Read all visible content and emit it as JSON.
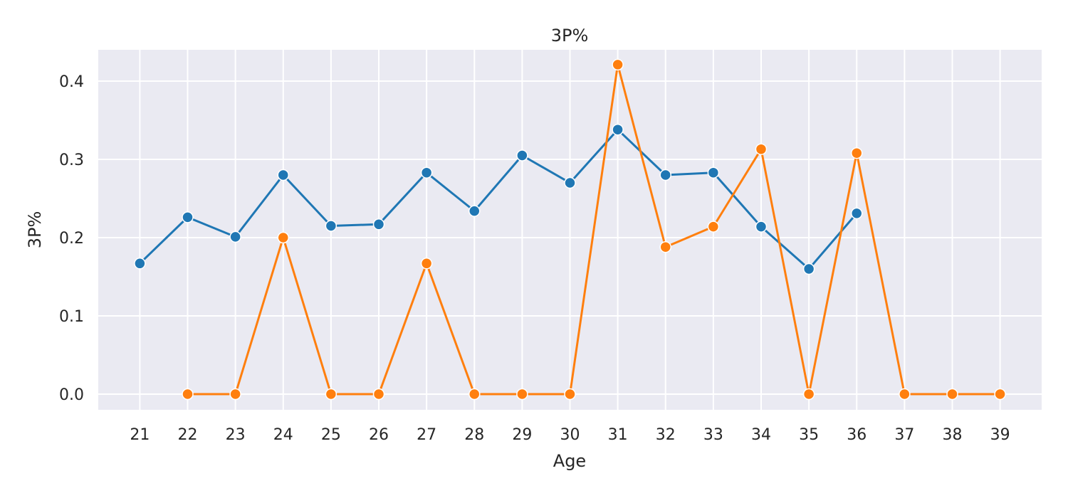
{
  "chart_data": {
    "type": "line",
    "title": "3P%",
    "xlabel": "Age",
    "ylabel": "3P%",
    "x": [
      21,
      22,
      23,
      24,
      25,
      26,
      27,
      28,
      29,
      30,
      31,
      32,
      33,
      34,
      35,
      36,
      37,
      38,
      39
    ],
    "x_ticks": [
      "21",
      "22",
      "23",
      "24",
      "25",
      "26",
      "27",
      "28",
      "29",
      "30",
      "31",
      "32",
      "33",
      "34",
      "35",
      "36",
      "37",
      "38",
      "39"
    ],
    "y_ticks": [
      "0.0",
      "0.1",
      "0.2",
      "0.3",
      "0.4"
    ],
    "ylim": [
      -0.02,
      0.44
    ],
    "grid": true,
    "legend": "none",
    "series": [
      {
        "color": "#1f77b4",
        "x": [
          21,
          22,
          23,
          24,
          25,
          26,
          27,
          28,
          29,
          30,
          31,
          32,
          33,
          34,
          35,
          36
        ],
        "values": [
          0.167,
          0.226,
          0.201,
          0.28,
          0.215,
          0.217,
          0.283,
          0.234,
          0.305,
          0.27,
          0.338,
          0.28,
          0.283,
          0.214,
          0.16,
          0.231
        ]
      },
      {
        "color": "#ff7f0e",
        "x": [
          22,
          23,
          24,
          25,
          26,
          27,
          28,
          29,
          30,
          31,
          32,
          33,
          34,
          35,
          36,
          37,
          38,
          39
        ],
        "values": [
          0.0,
          0.0,
          0.2,
          0.0,
          0.0,
          0.167,
          0.0,
          0.0,
          0.0,
          0.421,
          0.188,
          0.214,
          0.313,
          0.0,
          0.308,
          0.0,
          0.0,
          0.0
        ]
      }
    ]
  }
}
